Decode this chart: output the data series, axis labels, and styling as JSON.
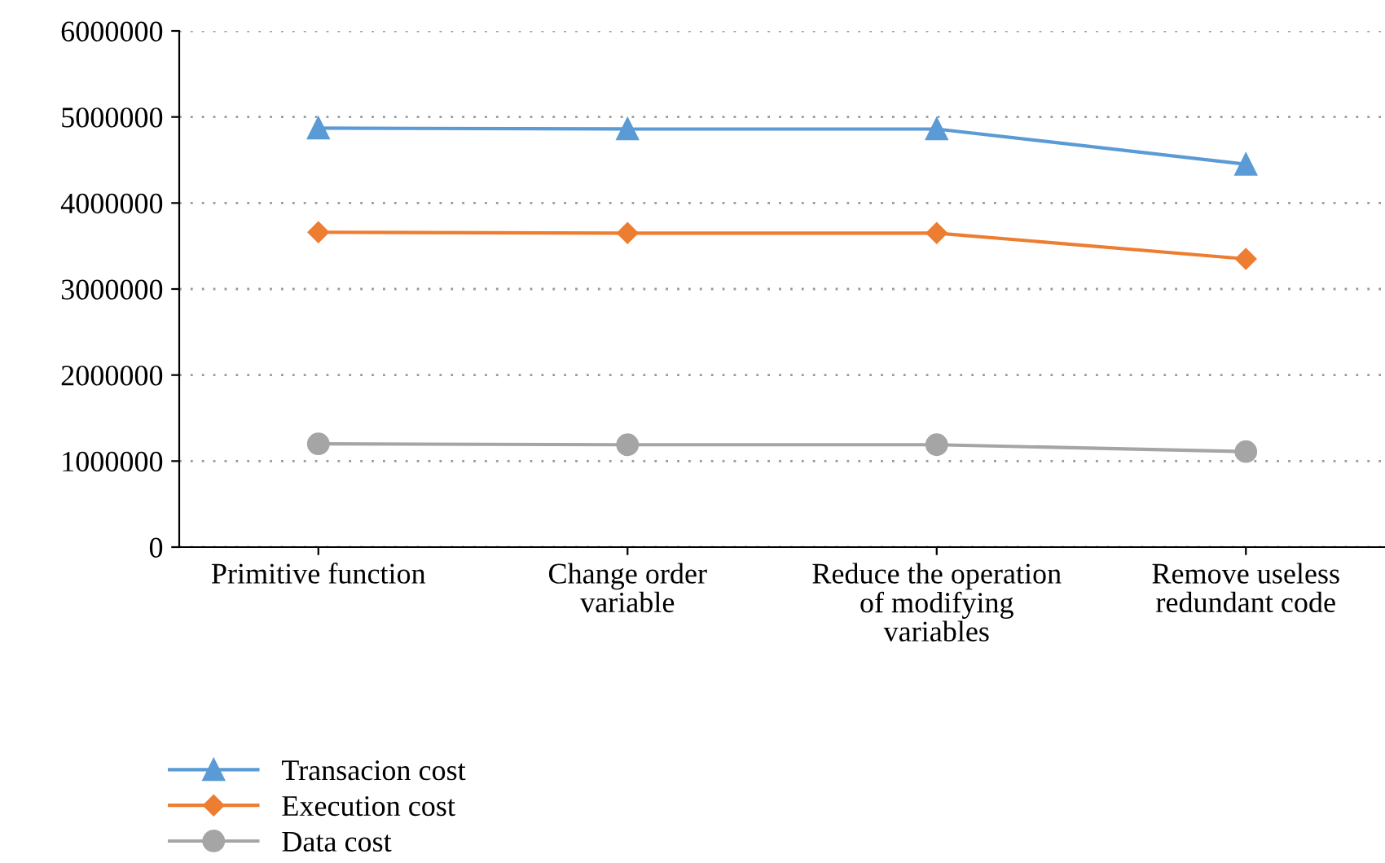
{
  "chart_data": {
    "type": "line",
    "categories": [
      "Primitive function",
      "Change order\nvariable",
      "Reduce the operation\nof modifying\nvariables",
      "Remove useless\nredundant code"
    ],
    "series": [
      {
        "name": "Transacion cost",
        "color": "#5b9bd5",
        "marker": "triangle",
        "values": [
          4870000,
          4860000,
          4860000,
          4450000
        ]
      },
      {
        "name": "Execution cost",
        "color": "#ed7d31",
        "marker": "diamond",
        "values": [
          3660000,
          3650000,
          3650000,
          3350000
        ]
      },
      {
        "name": "Data cost",
        "color": "#a5a5a5",
        "marker": "circle",
        "values": [
          1200000,
          1190000,
          1190000,
          1110000
        ]
      }
    ],
    "ylim": [
      0,
      6000000
    ],
    "yticks": [
      0,
      1000000,
      2000000,
      3000000,
      4000000,
      5000000,
      6000000
    ],
    "grid": "y",
    "legend": "bottom left",
    "line_style": "solid"
  }
}
